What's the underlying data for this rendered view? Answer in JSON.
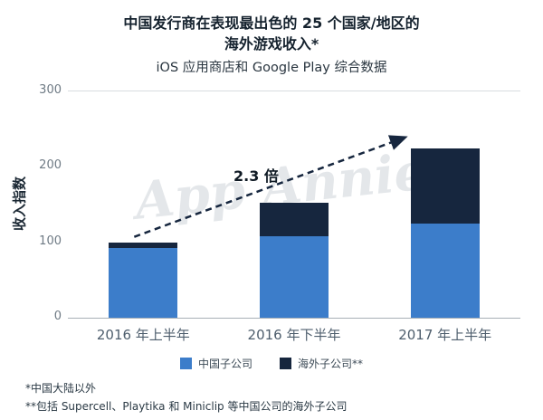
{
  "header": {
    "title_line1": "中国发行商在表现最出色的 25 个国家/地区的",
    "title_line2": "海外游戏收入*",
    "subtitle": "iOS 应用商店和 Google Play 综合数据"
  },
  "watermark": "App Annie",
  "chart_data": {
    "type": "bar",
    "stacked": true,
    "categories": [
      "2016 年上半年",
      "2016 年下半年",
      "2017 年上半年"
    ],
    "series": [
      {
        "name": "中国子公司",
        "color": "#3c7dca",
        "values": [
          93,
          108,
          125
        ]
      },
      {
        "name": "海外子公司**",
        "color": "#16263e",
        "values": [
          7,
          45,
          100
        ]
      }
    ],
    "totals": [
      100,
      153,
      225
    ],
    "annotation": "2.3 倍",
    "title": "中国发行商在表现最出色的 25 个国家/地区的海外游戏收入*",
    "subtitle": "iOS 应用商店和 Google Play 综合数据",
    "xlabel": "",
    "ylabel": "收入指数",
    "ylim": [
      0,
      300
    ],
    "yticks": [
      0,
      100,
      200,
      300
    ],
    "grid": false,
    "legend_position": "bottom"
  },
  "footnotes": [
    "*中国大陆以外",
    "**包括 Supercell、Playtika 和 Miniclip 等中国公司的海外子公司"
  ]
}
